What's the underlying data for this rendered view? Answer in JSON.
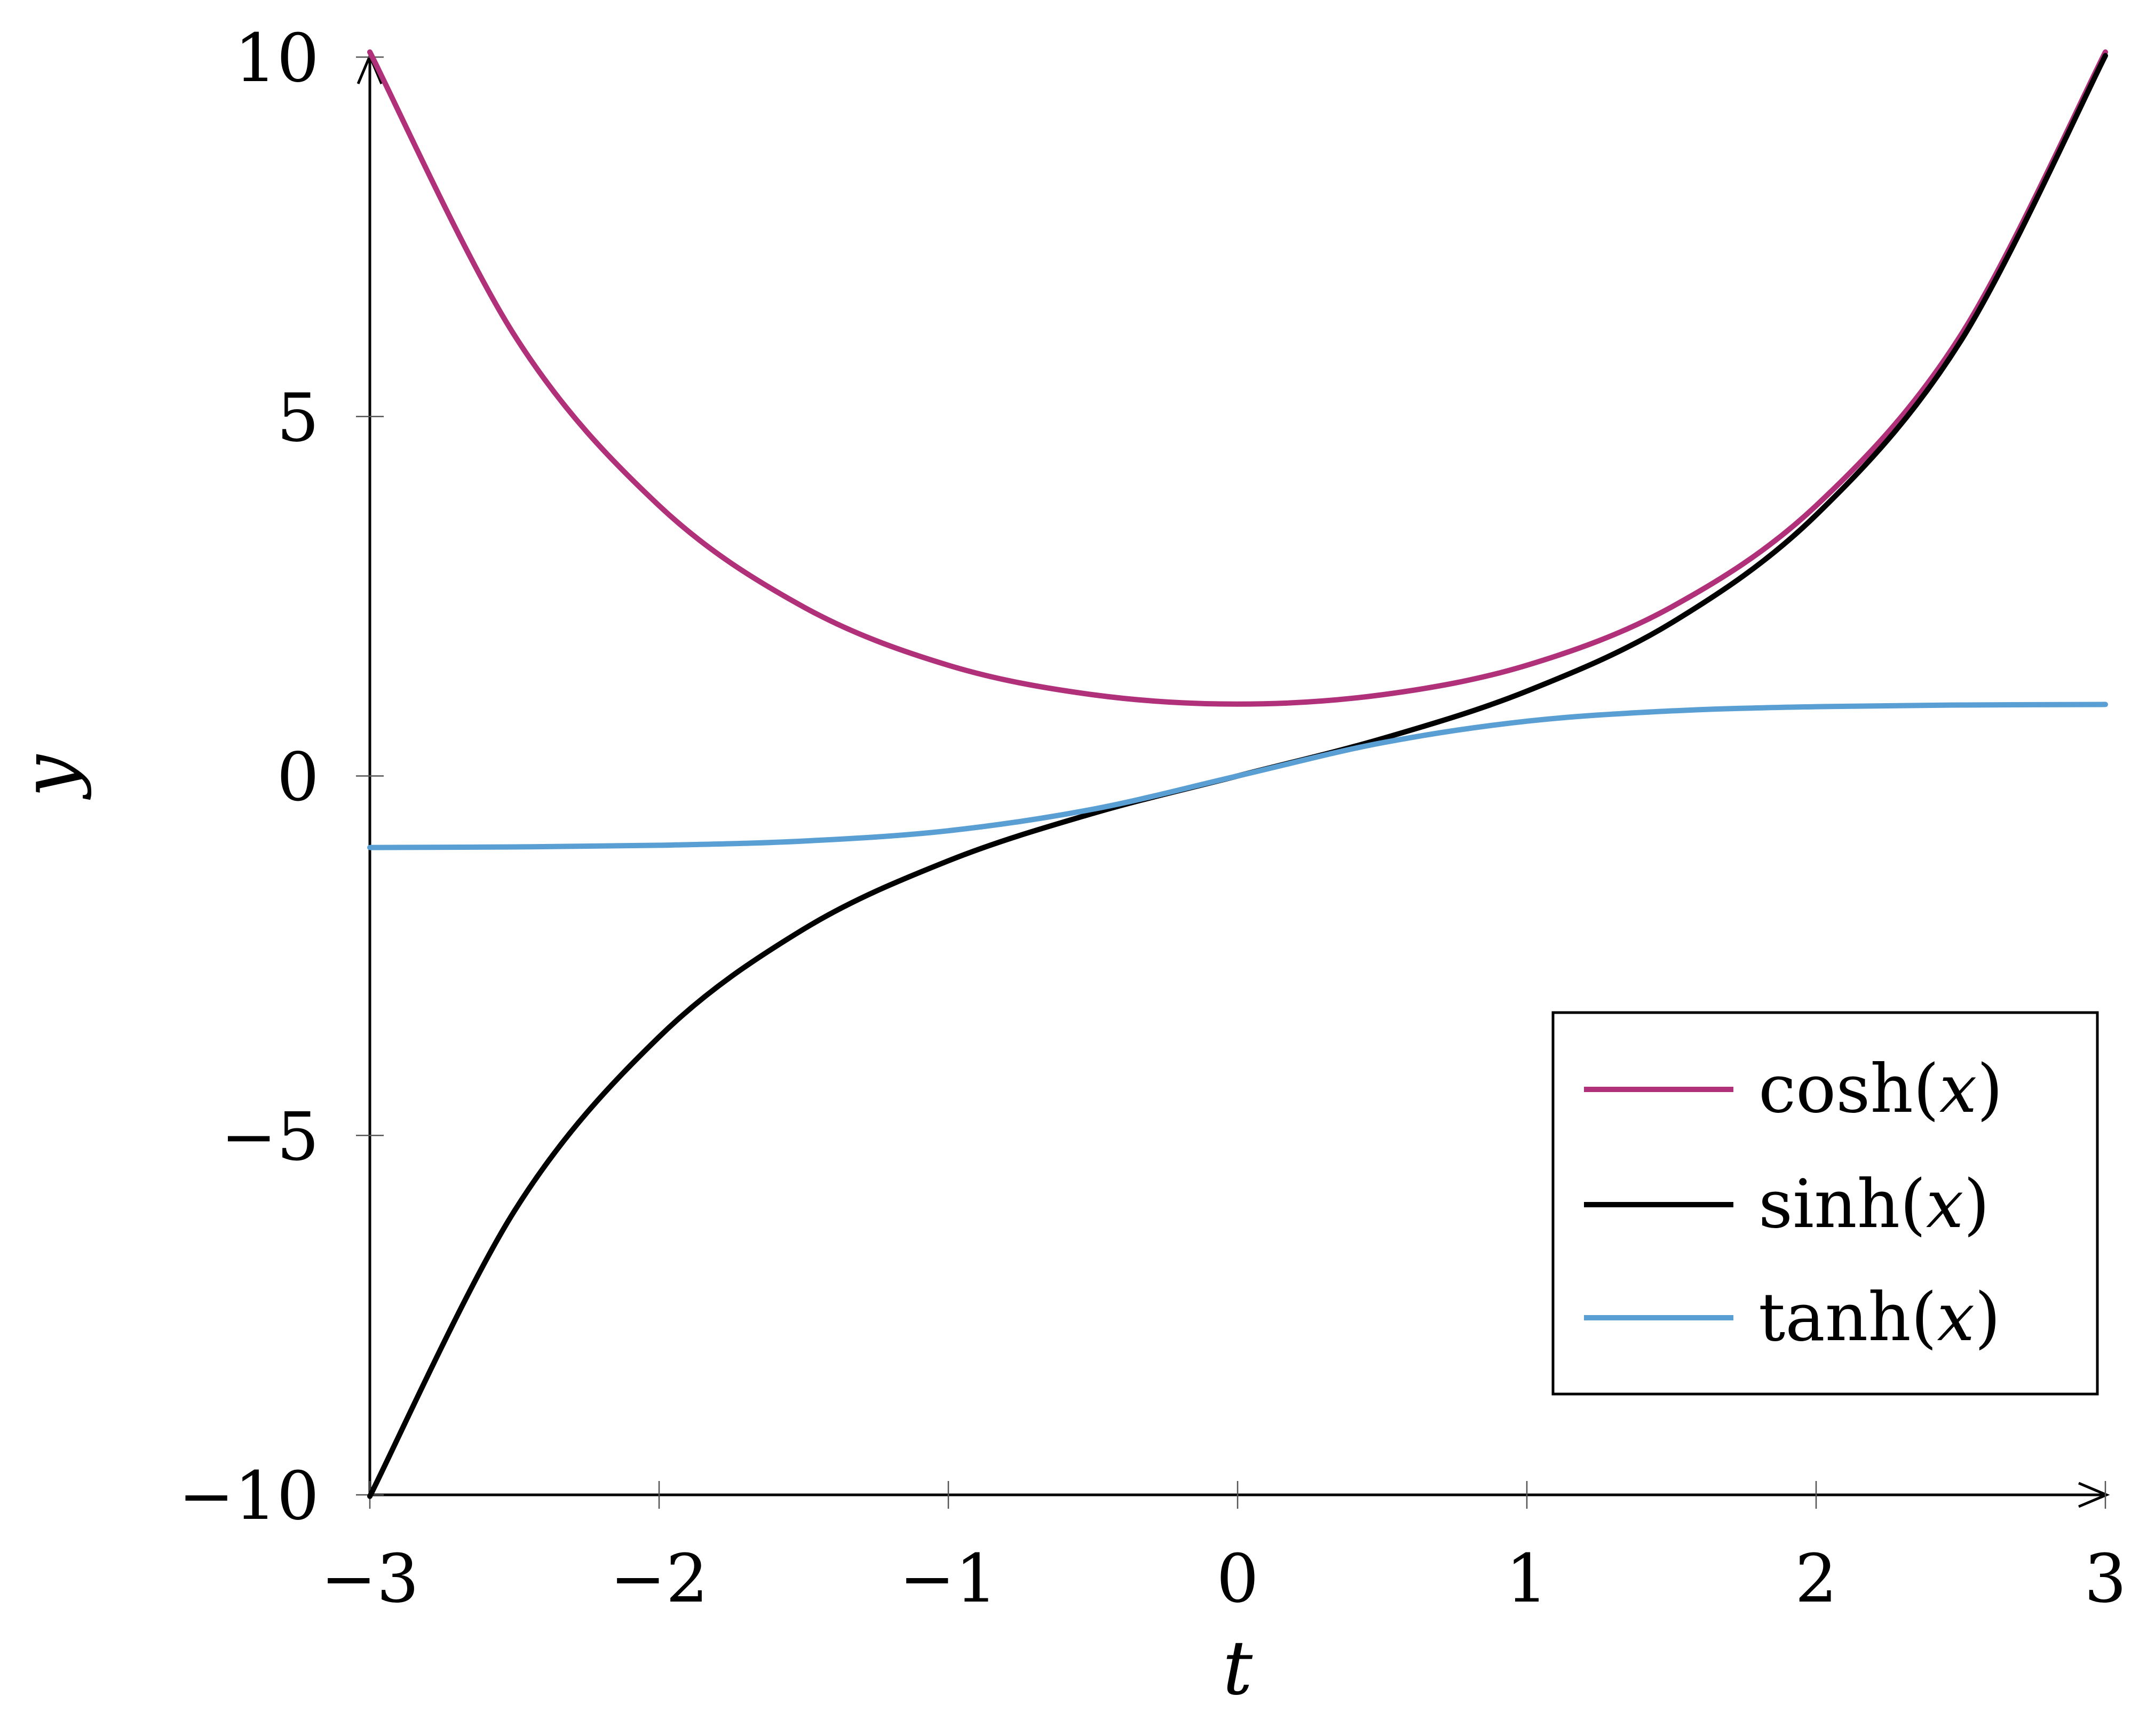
{
  "chart_data": {
    "type": "line",
    "title": "",
    "xlabel": "t",
    "ylabel": "y",
    "xlim": [
      -3,
      3
    ],
    "ylim": [
      -10,
      10
    ],
    "xticks": [
      -3,
      -2,
      -1,
      0,
      1,
      2,
      3
    ],
    "xtick_labels": [
      "−3",
      "−2",
      "−1",
      "0",
      "1",
      "2",
      "3"
    ],
    "yticks": [
      -10,
      -5,
      0,
      5,
      10
    ],
    "ytick_labels": [
      "−10",
      "−5",
      "0",
      "5",
      "10"
    ],
    "grid": false,
    "legend_position": "bottom-right",
    "x": [
      -3,
      -2.5,
      -2,
      -1.5,
      -1,
      -0.5,
      0,
      0.5,
      1,
      1.5,
      2,
      2.5,
      3
    ],
    "series": [
      {
        "name": "cosh",
        "legend_prefix": "cosh(",
        "legend_var": "x",
        "legend_suffix": ")",
        "color": "#b0307a",
        "values": [
          10.07,
          6.13,
          3.76,
          2.35,
          1.54,
          1.13,
          1.0,
          1.13,
          1.54,
          2.35,
          3.76,
          6.13,
          10.07
        ]
      },
      {
        "name": "sinh",
        "legend_prefix": "sinh(",
        "legend_var": "x",
        "legend_suffix": ")",
        "color": "#000000",
        "values": [
          -10.02,
          -6.05,
          -3.63,
          -2.13,
          -1.18,
          -0.52,
          0.0,
          0.52,
          1.18,
          2.13,
          3.63,
          6.05,
          10.02
        ]
      },
      {
        "name": "tanh",
        "legend_prefix": "tanh(",
        "legend_var": "x",
        "legend_suffix": ")",
        "color": "#5a9fd4",
        "values": [
          -0.995,
          -0.987,
          -0.964,
          -0.905,
          -0.762,
          -0.462,
          0.0,
          0.462,
          0.762,
          0.905,
          0.964,
          0.987,
          0.995
        ]
      }
    ]
  }
}
